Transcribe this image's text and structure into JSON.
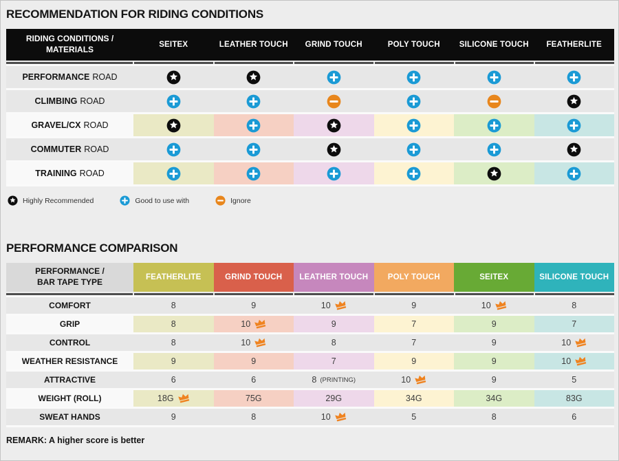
{
  "icons": {
    "star_color": "#0d0d0d",
    "plus_color": "#1a9ad5",
    "minus_color": "#e8861c",
    "crown_color": "#ef8320"
  },
  "tints": [
    "#eae9c5",
    "#f6d0c3",
    "#eed8ea",
    "#fdf3d2",
    "#dcedc6",
    "#c8e6e4"
  ],
  "section1": {
    "title": "RECOMMENDATION FOR RIDING CONDITIONS",
    "header_label_line1": "RIDING CONDITIONS /",
    "header_label_line2": "MATERIALS",
    "columns": [
      "SEITEX",
      "LEATHER TOUCH",
      "GRIND TOUCH",
      "POLY TOUCH",
      "SILICONE TOUCH",
      "FEATHERLITE"
    ],
    "rows": [
      {
        "label_bold": "PERFORMANCE",
        "label_rest": "ROAD",
        "tinted": false,
        "icons": [
          "star",
          "star",
          "plus",
          "plus",
          "plus",
          "plus"
        ]
      },
      {
        "label_bold": "CLIMBING",
        "label_rest": "ROAD",
        "tinted": false,
        "icons": [
          "plus",
          "plus",
          "minus",
          "plus",
          "minus",
          "star"
        ]
      },
      {
        "label_bold": "GRAVEL/CX",
        "label_rest": "ROAD",
        "tinted": true,
        "icons": [
          "star",
          "plus",
          "star",
          "plus",
          "plus",
          "plus"
        ]
      },
      {
        "label_bold": "COMMUTER",
        "label_rest": "ROAD",
        "tinted": false,
        "icons": [
          "plus",
          "plus",
          "star",
          "plus",
          "plus",
          "star"
        ]
      },
      {
        "label_bold": "TRAINING",
        "label_rest": "ROAD",
        "tinted": true,
        "icons": [
          "plus",
          "plus",
          "plus",
          "plus",
          "star",
          "plus"
        ]
      }
    ],
    "legend": [
      {
        "icon": "star",
        "label": "Highly Recommended"
      },
      {
        "icon": "plus",
        "label": "Good to use with"
      },
      {
        "icon": "minus",
        "label": "Ignore"
      }
    ]
  },
  "section2": {
    "title": "PERFORMANCE COMPARISON",
    "header_label_line1": "PERFORMANCE /",
    "header_label_line2": "BAR TAPE TYPE",
    "columns": [
      {
        "label": "FEATHERLITE",
        "color": "#c6c054"
      },
      {
        "label": "GRIND TOUCH",
        "color": "#d9604b"
      },
      {
        "label": "LEATHER TOUCH",
        "color": "#c687bd"
      },
      {
        "label": "POLY TOUCH",
        "color": "#f2a960"
      },
      {
        "label": "SEITEX",
        "color": "#68aa35"
      },
      {
        "label": "SILICONE TOUCH",
        "color": "#2fb3bb"
      }
    ],
    "rows": [
      {
        "label": "COMFORT",
        "tinted": false,
        "cells": [
          {
            "value": "8"
          },
          {
            "value": "9"
          },
          {
            "value": "10",
            "crown": true
          },
          {
            "value": "9"
          },
          {
            "value": "10",
            "crown": true
          },
          {
            "value": "8"
          }
        ]
      },
      {
        "label": "GRIP",
        "tinted": true,
        "cells": [
          {
            "value": "8"
          },
          {
            "value": "10",
            "crown": true
          },
          {
            "value": "9"
          },
          {
            "value": "7"
          },
          {
            "value": "9"
          },
          {
            "value": "7"
          }
        ]
      },
      {
        "label": "CONTROL",
        "tinted": false,
        "cells": [
          {
            "value": "8"
          },
          {
            "value": "10",
            "crown": true
          },
          {
            "value": "8"
          },
          {
            "value": "7"
          },
          {
            "value": "9"
          },
          {
            "value": "10",
            "crown": true
          }
        ]
      },
      {
        "label": "WEATHER RESISTANCE",
        "tinted": true,
        "cells": [
          {
            "value": "9"
          },
          {
            "value": "9"
          },
          {
            "value": "7"
          },
          {
            "value": "9"
          },
          {
            "value": "9"
          },
          {
            "value": "10",
            "crown": true
          }
        ]
      },
      {
        "label": "ATTRACTIVE",
        "tinted": false,
        "cells": [
          {
            "value": "6"
          },
          {
            "value": "6"
          },
          {
            "value": "8",
            "suffix": "(PRINTING)"
          },
          {
            "value": "10",
            "crown": true
          },
          {
            "value": "9"
          },
          {
            "value": "5"
          }
        ]
      },
      {
        "label": "WEIGHT (ROLL)",
        "tinted": true,
        "cells": [
          {
            "value": "18G",
            "crown": true
          },
          {
            "value": "75G"
          },
          {
            "value": "29G"
          },
          {
            "value": "34G"
          },
          {
            "value": "34G"
          },
          {
            "value": "83G"
          }
        ]
      },
      {
        "label": "SWEAT HANDS",
        "tinted": false,
        "cells": [
          {
            "value": "9"
          },
          {
            "value": "8"
          },
          {
            "value": "10",
            "crown": true
          },
          {
            "value": "5"
          },
          {
            "value": "8"
          },
          {
            "value": "6"
          }
        ]
      }
    ],
    "remark": "REMARK: A higher score is better"
  }
}
